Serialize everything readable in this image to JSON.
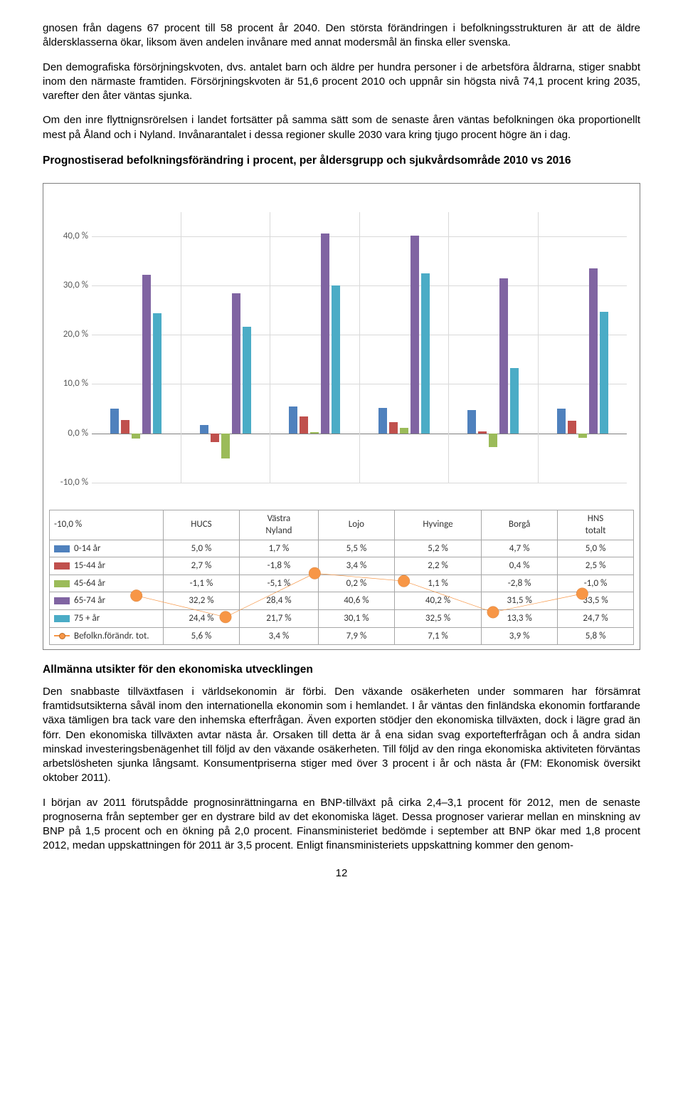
{
  "paragraphs": {
    "p1": "gnosen från dagens 67 procent till 58 procent år 2040. Den största förändringen i befolkningsstrukturen är att de äldre åldersklasserna ökar, liksom även andelen invånare med annat modersmål än finska eller svenska.",
    "p2": "Den demografiska försörjningskvoten, dvs. antalet barn och äldre per hundra personer i de arbetsföra åldrarna, stiger snabbt inom den närmaste framtiden. Försörjningskvoten är 51,6 procent 2010 och uppnår sin högsta nivå 74,1 procent kring 2035, varefter den åter väntas sjunka.",
    "p3": "Om den inre flyttnignsrörelsen i landet fortsätter på samma sätt som de senaste åren väntas befolkningen öka proportionellt mest på Åland och i Nyland. Invånarantalet i dessa regioner skulle 2030 vara kring tjugo procent högre än i dag.",
    "h_chart": "Prognostiserad befolkningsförändring i procent, per åldersgrupp och sjukvårdsområde 2010 vs 2016",
    "h_econ": "Allmänna utsikter för den ekonomiska utvecklingen",
    "p4": "Den snabbaste tillväxtfasen i världsekonomin är förbi. Den växande osäkerheten under sommaren har försämrat framtidsutsikterna såväl inom den internationella ekonomin som i hemlandet. I år väntas den finländska ekonomin fortfarande växa tämligen bra tack vare den inhemska efterfrågan. Även exporten stödjer den ekonomiska tillväxten, dock i lägre grad än förr. Den ekonomiska tillväxten avtar nästa år. Orsaken till detta är å ena sidan svag exportefterfrågan och å andra sidan minskad investeringsbenägenhet till följd av den växande osäkerheten. Till följd av den ringa ekonomiska aktiviteten förväntas arbetslösheten sjunka långsamt. Konsumentpriserna stiger med över 3 procent i år och nästa år (FM: Ekonomisk översikt oktober 2011).",
    "p5": "I början av 2011 förutspådde prognosinrättningarna en BNP-tillväxt på cirka 2,4–3,1 procent för 2012, men de senaste prognoserna från september ger en dystrare bild av det ekonomiska läget. Dessa prognoser varierar mellan en minskning av BNP på 1,5 procent och en ökning på 2,0 procent. Finansministeriet bedömde i september att BNP ökar med 1,8 procent 2012, medan uppskattningen för 2011 är 3,5 procent. Enligt finansministeriets uppskattning kommer den genom-"
  },
  "chart": {
    "type": "bar+line",
    "y_min": -10,
    "y_max": 45,
    "y_ticks": [
      -10,
      0,
      10,
      20,
      30,
      40
    ],
    "y_tick_labels": [
      "-10,0 %",
      "0,0 %",
      "10,0 %",
      "20,0 %",
      "30,0 %",
      "40,0 %"
    ],
    "categories": [
      "HUCS",
      "Västra Nyland",
      "Lojo",
      "Hyvinge",
      "Borgå",
      "HNS totalt"
    ],
    "series": [
      {
        "key": "s0",
        "label": "0-14 år",
        "color": "#4f81bd",
        "vals": [
          5.0,
          1.7,
          5.5,
          5.2,
          4.7,
          5.0
        ]
      },
      {
        "key": "s1",
        "label": "15-44 år",
        "color": "#c0504d",
        "vals": [
          2.7,
          -1.8,
          3.4,
          2.2,
          0.4,
          2.5
        ]
      },
      {
        "key": "s2",
        "label": "45-64 år",
        "color": "#9bbb59",
        "vals": [
          -1.1,
          -5.1,
          0.2,
          1.1,
          -2.8,
          -1.0
        ]
      },
      {
        "key": "s3",
        "label": "65-74 år",
        "color": "#8064a2",
        "vals": [
          32.2,
          28.4,
          40.6,
          40.2,
          31.5,
          33.5
        ]
      },
      {
        "key": "s4",
        "label": "75 + år",
        "color": "#4bacc6",
        "vals": [
          24.4,
          21.7,
          30.1,
          32.5,
          13.3,
          24.7
        ]
      }
    ],
    "line_series": {
      "label": "Befolkn.förändr. tot.",
      "color": "#f79646",
      "vals": [
        5.6,
        3.4,
        7.9,
        7.1,
        3.9,
        5.8
      ]
    },
    "table_rows": [
      {
        "label": "0-14 år",
        "cells": [
          "5,0 %",
          "1,7 %",
          "5,5 %",
          "5,2 %",
          "4,7 %",
          "5,0 %"
        ],
        "color": "#4f81bd"
      },
      {
        "label": "15-44 år",
        "cells": [
          "2,7 %",
          "-1,8 %",
          "3,4 %",
          "2,2 %",
          "0,4 %",
          "2,5 %"
        ],
        "color": "#c0504d"
      },
      {
        "label": "45-64 år",
        "cells": [
          "-1,1 %",
          "-5,1 %",
          "0,2 %",
          "1,1 %",
          "-2,8 %",
          "-1,0 %"
        ],
        "color": "#9bbb59"
      },
      {
        "label": "65-74 år",
        "cells": [
          "32,2 %",
          "28,4 %",
          "40,6 %",
          "40,2 %",
          "31,5 %",
          "33,5 %"
        ],
        "color": "#8064a2"
      },
      {
        "label": "75 + år",
        "cells": [
          "24,4 %",
          "21,7 %",
          "30,1 %",
          "32,5 %",
          "13,3 %",
          "24,7 %"
        ],
        "color": "#4bacc6"
      },
      {
        "label": "Befolkn.förändr. tot.",
        "cells": [
          "5,6 %",
          "3,4 %",
          "7,9 %",
          "7,1 %",
          "3,9 %",
          "5,8 %"
        ],
        "line": true,
        "color": "#f79646"
      }
    ],
    "grid_color": "#d9d9d9",
    "text_color": "#595959",
    "legend_top_left": "-10,0 %"
  },
  "page_number": "12"
}
